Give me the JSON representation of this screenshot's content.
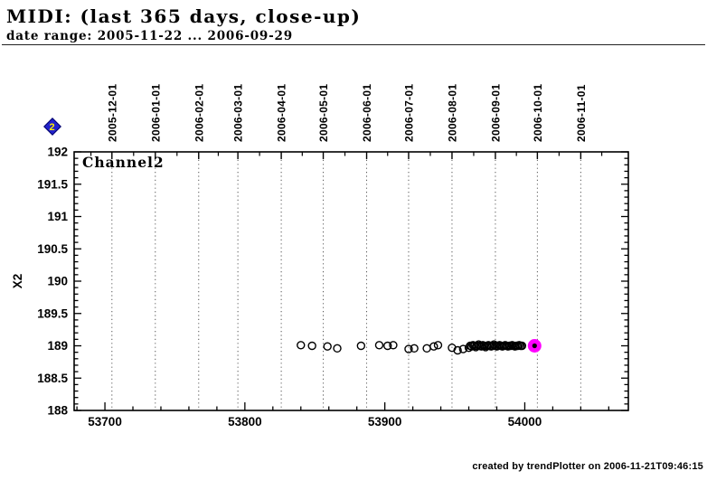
{
  "header": {
    "title": "MIDI: (last 365 days, close-up)",
    "subtitle": "date range: 2005-11-22 ... 2006-09-29"
  },
  "footer": {
    "credit": "created by trendPlotter on 2006-11-21T09:46:15"
  },
  "legend": {
    "marker_shape": "diamond",
    "marker_fill": "#2222cc",
    "marker_border": "#000066",
    "label": "2",
    "label_color": "#ffee00"
  },
  "chart_data": {
    "type": "scatter",
    "inner_label": "Channel2",
    "ylabel": "X2",
    "xlim": [
      53678,
      54074
    ],
    "ylim": [
      188,
      192
    ],
    "grid": "vertical dotted lines at month boundaries",
    "legend_position": "none",
    "x_major_ticks": [
      53700,
      53800,
      53900,
      54000
    ],
    "x_minor_step": 20,
    "y_major_ticks": [
      188,
      188.5,
      189,
      189.5,
      190,
      190.5,
      191,
      191.5,
      192
    ],
    "y_minor_step": 0.1,
    "top_axis_months": [
      {
        "label": "2005-12-01",
        "mjd": 53705
      },
      {
        "label": "2006-01-01",
        "mjd": 53736
      },
      {
        "label": "2006-02-01",
        "mjd": 53767
      },
      {
        "label": "2006-03-01",
        "mjd": 53795
      },
      {
        "label": "2006-04-01",
        "mjd": 53826
      },
      {
        "label": "2006-05-01",
        "mjd": 53856
      },
      {
        "label": "2006-06-01",
        "mjd": 53887
      },
      {
        "label": "2006-07-01",
        "mjd": 53917
      },
      {
        "label": "2006-08-01",
        "mjd": 53948
      },
      {
        "label": "2006-09-01",
        "mjd": 53979
      },
      {
        "label": "2006-10-01",
        "mjd": 54009
      },
      {
        "label": "2006-11-01",
        "mjd": 54040
      }
    ],
    "series": [
      {
        "name": "Channel2",
        "marker": "open-circle",
        "color": "#000000",
        "points": [
          [
            53840,
            189.01
          ],
          [
            53848,
            189.0
          ],
          [
            53859,
            188.99
          ],
          [
            53866,
            188.96
          ],
          [
            53883,
            189.0
          ],
          [
            53896,
            189.01
          ],
          [
            53902,
            189.0
          ],
          [
            53906,
            189.01
          ],
          [
            53917,
            188.95
          ],
          [
            53921,
            188.96
          ],
          [
            53930,
            188.96
          ],
          [
            53935,
            188.99
          ],
          [
            53938,
            189.01
          ],
          [
            53948,
            188.97
          ],
          [
            53952,
            188.93
          ],
          [
            53956,
            188.95
          ],
          [
            53960,
            188.97
          ],
          [
            53961,
            189.0
          ],
          [
            53962,
            188.99
          ],
          [
            53963,
            189.01
          ],
          [
            53964,
            189.0
          ],
          [
            53965,
            188.98
          ],
          [
            53966,
            189.0
          ],
          [
            53967,
            189.02
          ],
          [
            53968,
            189.0
          ],
          [
            53969,
            188.99
          ],
          [
            53970,
            189.01
          ],
          [
            53971,
            189.0
          ],
          [
            53972,
            188.98
          ],
          [
            53973,
            189.0
          ],
          [
            53974,
            189.01
          ],
          [
            53975,
            189.0
          ],
          [
            53976,
            188.99
          ],
          [
            53977,
            189.0
          ],
          [
            53978,
            189.02
          ],
          [
            53979,
            189.0
          ],
          [
            53980,
            188.99
          ],
          [
            53981,
            189.0
          ],
          [
            53982,
            189.01
          ],
          [
            53983,
            189.0
          ],
          [
            53984,
            188.99
          ],
          [
            53985,
            189.0
          ],
          [
            53986,
            189.01
          ],
          [
            53987,
            189.0
          ],
          [
            53988,
            188.99
          ],
          [
            53989,
            189.0
          ],
          [
            53990,
            189.0
          ],
          [
            53991,
            189.01
          ],
          [
            53992,
            189.0
          ],
          [
            53993,
            188.99
          ],
          [
            53994,
            189.0
          ],
          [
            53995,
            189.0
          ],
          [
            53996,
            189.01
          ],
          [
            53997,
            189.0
          ],
          [
            53998,
            189.0
          ]
        ]
      }
    ],
    "highlight_point": {
      "x": 54007,
      "y": 189.0,
      "fill": "#ff00ff",
      "center_dot": "#000000"
    }
  }
}
